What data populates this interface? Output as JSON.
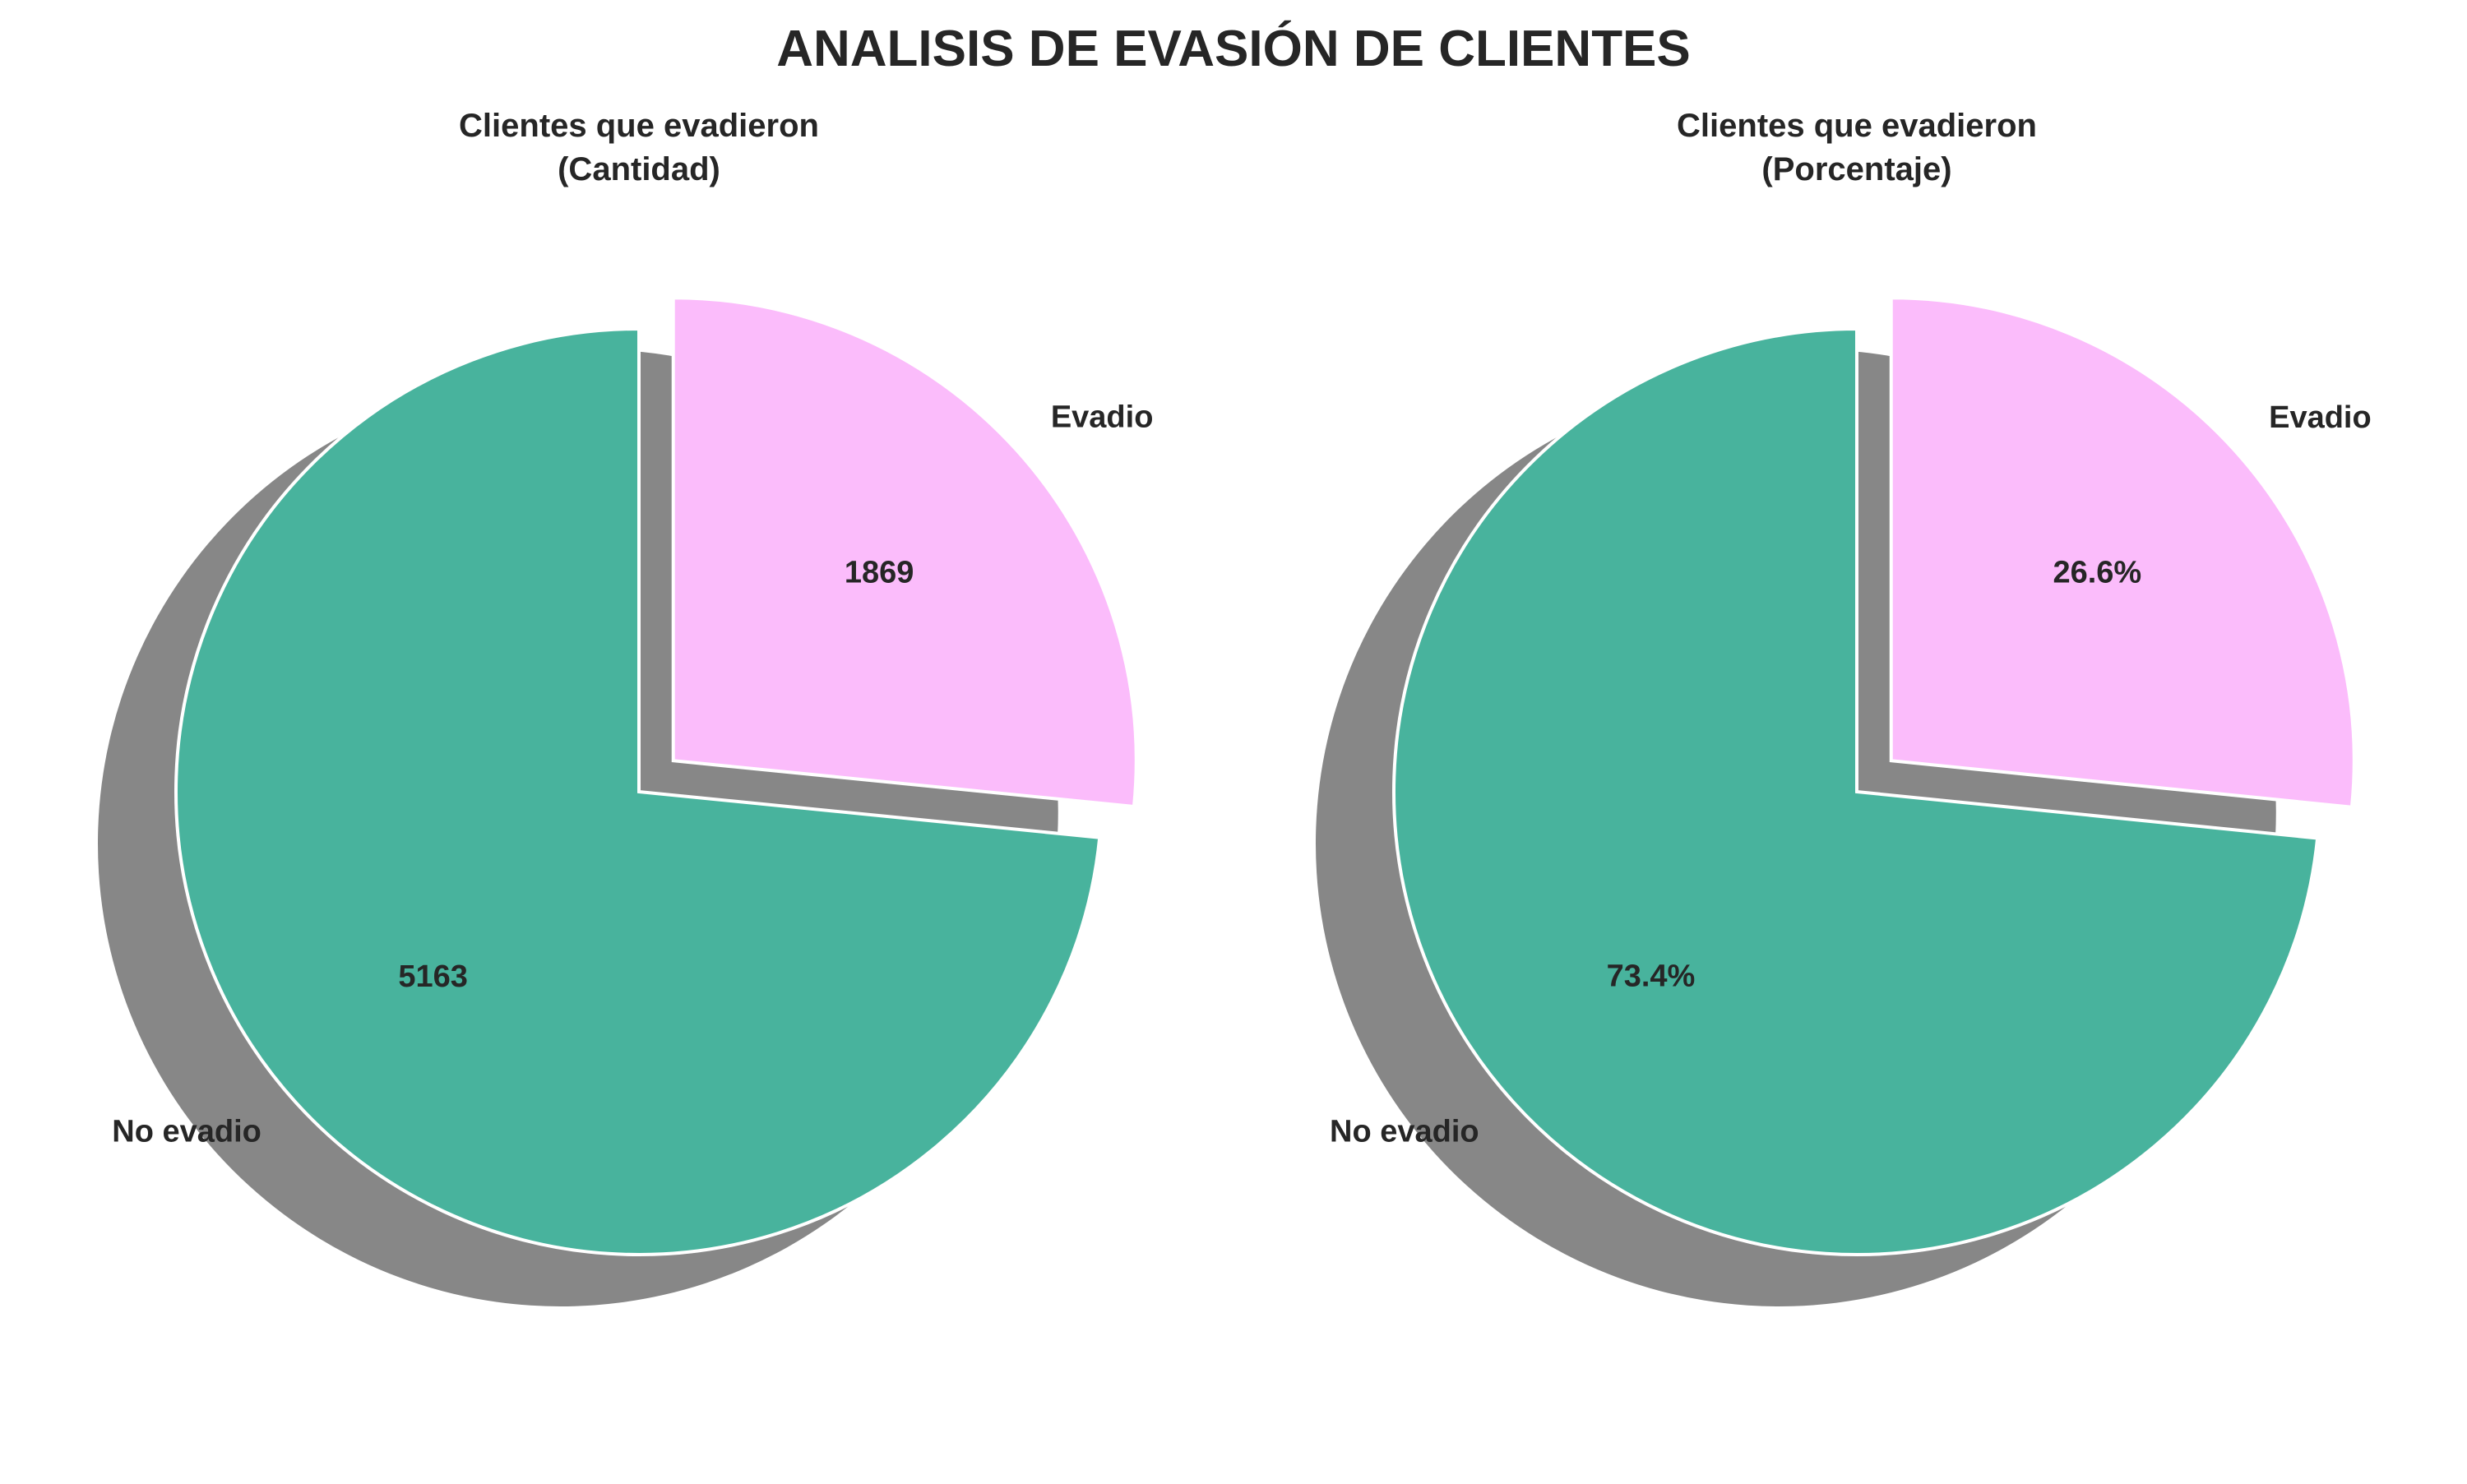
{
  "figure": {
    "title": "ANALISIS DE EVASIÓN DE CLIENTES"
  },
  "chart_data": [
    {
      "type": "pie",
      "title": "Clientes que evadieron\n(Cantidad)",
      "labels": [
        "No evadio",
        "Evadio"
      ],
      "values": [
        5163,
        1869
      ],
      "value_labels": [
        "5163",
        "1869"
      ],
      "colors": [
        "#48b39d",
        "#fbbcfb"
      ],
      "explode": [
        0,
        0.1
      ],
      "shadow": true,
      "start_angle_deg": 90
    },
    {
      "type": "pie",
      "title": "Clientes que evadieron\n(Porcentaje)",
      "labels": [
        "No evadio",
        "Evadio"
      ],
      "values": [
        73.4,
        26.6
      ],
      "value_labels": [
        "73.4%",
        "26.6%"
      ],
      "colors": [
        "#48b39d",
        "#fbbcfb"
      ],
      "explode": [
        0,
        0.1
      ],
      "shadow": true,
      "start_angle_deg": 90
    }
  ]
}
